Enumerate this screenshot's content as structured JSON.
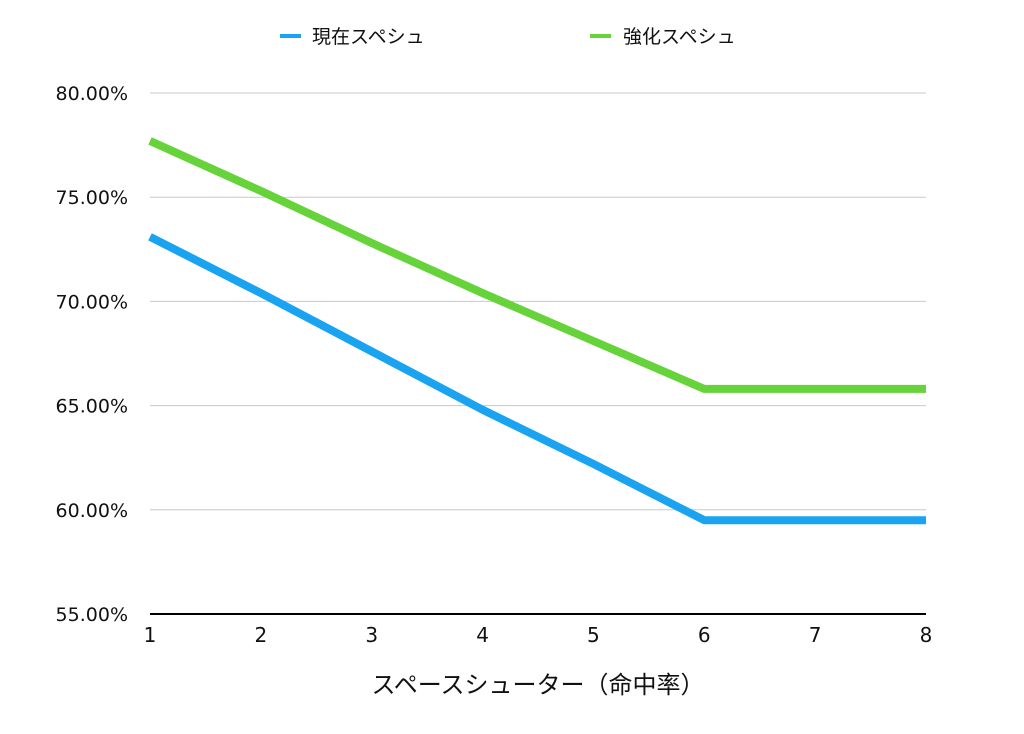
{
  "chart_data": {
    "type": "line",
    "title": "",
    "xlabel": "スペースシューター（命中率）",
    "ylabel": "",
    "x": [
      1,
      2,
      3,
      4,
      5,
      6,
      7,
      8
    ],
    "ylim": [
      55,
      80
    ],
    "yticks": [
      55,
      60,
      65,
      70,
      75,
      80
    ],
    "ytick_labels": [
      "55.00%",
      "60.00%",
      "65.00%",
      "70.00%",
      "75.00%",
      "80.00%"
    ],
    "xtick_labels": [
      "1",
      "2",
      "3",
      "4",
      "5",
      "6",
      "7",
      "8"
    ],
    "grid": true,
    "legend_position": "top",
    "series": [
      {
        "name": "現在スペシュ",
        "color": "#1aa3f0",
        "values": [
          73.1,
          70.4,
          67.6,
          64.8,
          62.2,
          59.5,
          59.5,
          59.5
        ]
      },
      {
        "name": "強化スペシュ",
        "color": "#66d33b",
        "values": [
          77.7,
          75.3,
          72.8,
          70.4,
          68.1,
          65.8,
          65.8,
          65.8
        ]
      }
    ]
  }
}
